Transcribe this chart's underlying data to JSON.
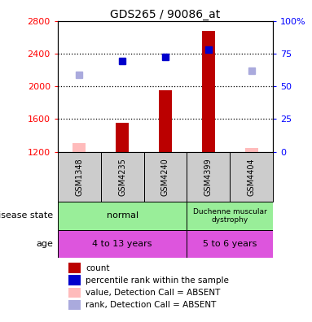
{
  "title": "GDS265 / 90086_at",
  "samples": [
    "GSM1348",
    "GSM4235",
    "GSM4240",
    "GSM4399",
    "GSM4404"
  ],
  "bar_values": [
    1310,
    1560,
    1950,
    2680,
    1250
  ],
  "bar_absent": [
    true,
    false,
    false,
    false,
    true
  ],
  "rank_values": [
    2140,
    2310,
    2360,
    2450,
    2190
  ],
  "rank_absent": [
    true,
    false,
    false,
    false,
    true
  ],
  "ylim_left": [
    1200,
    2800
  ],
  "ylim_right": [
    0,
    100
  ],
  "y_ticks_left": [
    1200,
    1600,
    2000,
    2400,
    2800
  ],
  "y_ticks_right": [
    0,
    25,
    50,
    75,
    100
  ],
  "bar_color_normal": "#bb0000",
  "bar_color_absent": "#ffbbbb",
  "rank_color_normal": "#0000cc",
  "rank_color_absent": "#aaaadd",
  "disease_normal_label": "normal",
  "disease_normal_color": "#99ee99",
  "disease_duchenne_label": "Duchenne muscular\ndystrophy",
  "disease_duchenne_color": "#99ee99",
  "age_group1_label": "4 to 13 years",
  "age_group1_color": "#dd55dd",
  "age_group2_label": "5 to 6 years",
  "age_group2_color": "#dd55dd",
  "sample_box_color": "#cccccc",
  "legend_items": [
    {
      "label": "count",
      "color": "#bb0000"
    },
    {
      "label": "percentile rank within the sample",
      "color": "#0000cc"
    },
    {
      "label": "value, Detection Call = ABSENT",
      "color": "#ffbbbb"
    },
    {
      "label": "rank, Detection Call = ABSENT",
      "color": "#aaaadd"
    }
  ],
  "left_label_color": "gray",
  "arrow_color": "gray"
}
